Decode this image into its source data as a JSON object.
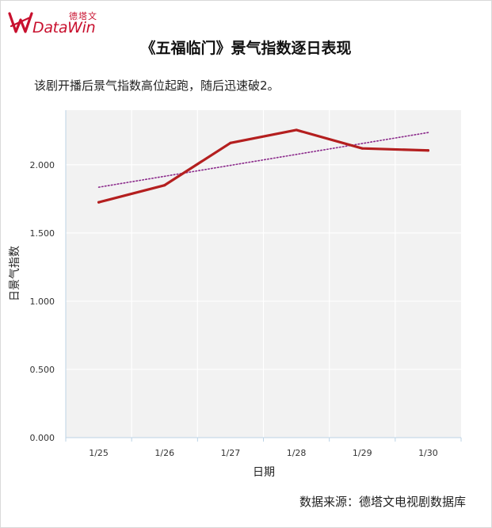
{
  "logo": {
    "cn": "德塔文",
    "en": "DataWin",
    "icon": "datawin-logo-icon"
  },
  "title": "《五福临门》景气指数逐日表现",
  "subtitle": "该剧开播后景气指数高位起跑，随后迅速破2。",
  "source": "数据来源：德塔文电视剧数据库",
  "colors": {
    "line": "#b41f1f",
    "trend": "#8b2a8b",
    "plot_bg": "#f2f2f2",
    "axis": "#bcd3e6",
    "brand": "#c8102e"
  },
  "chart_data": {
    "type": "line",
    "categories": [
      "1/25",
      "1/26",
      "1/27",
      "1/28",
      "1/29",
      "1/30"
    ],
    "series": [
      {
        "values": [
          1.725,
          1.85,
          2.16,
          2.255,
          2.12,
          2.105
        ]
      }
    ],
    "trendline": {
      "type": "linear",
      "style": "dotted"
    },
    "xlabel": "日期",
    "ylabel": "日景气指数",
    "ylim": [
      0,
      2.4
    ],
    "yticks": [
      0,
      0.5,
      1.0,
      1.5,
      2.0
    ],
    "ytick_labels": [
      "0.000",
      "0.500",
      "1.000",
      "1.500",
      "2.000"
    ],
    "grid": true,
    "legend": "none"
  }
}
